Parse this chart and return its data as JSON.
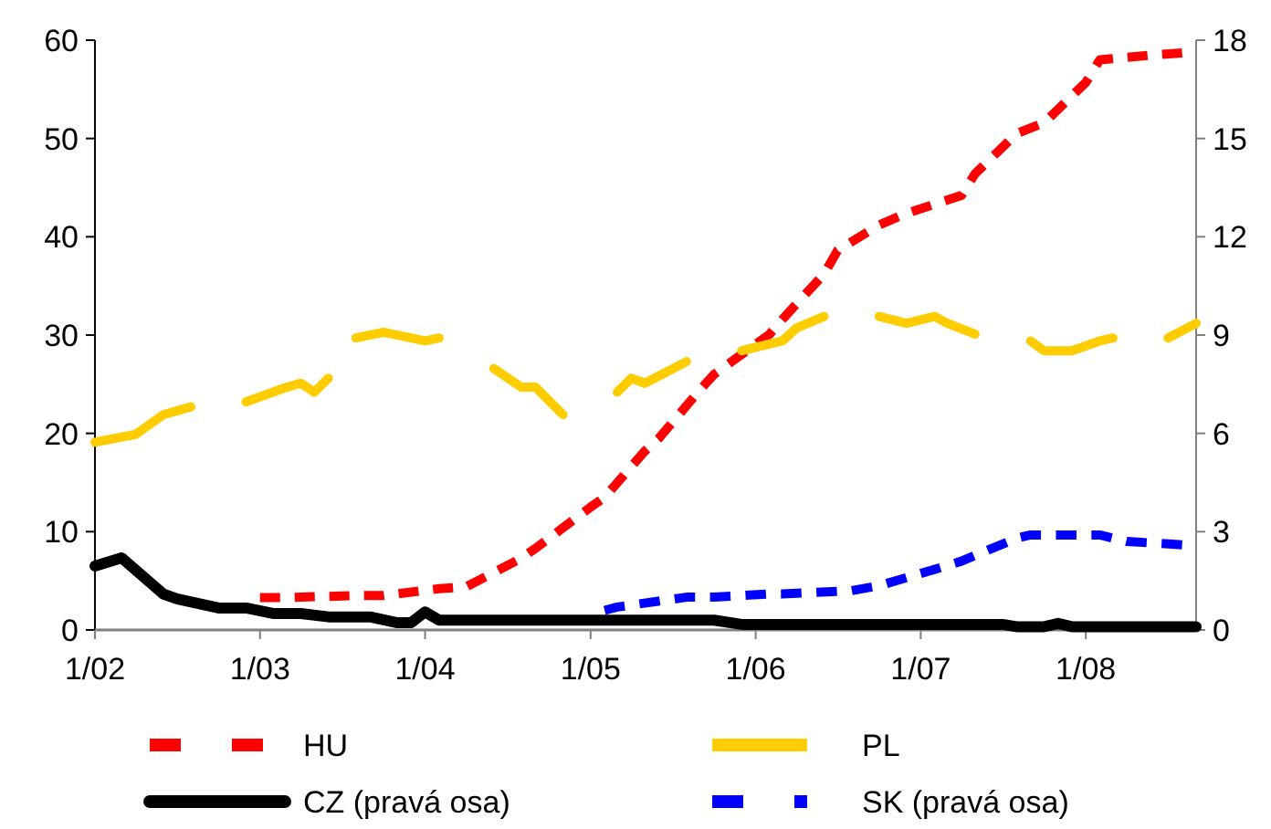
{
  "chart_data": {
    "type": "line",
    "xlim": [
      "2002-01",
      "2008-09"
    ],
    "xticks": [
      {
        "value": "2002-01",
        "label": "1/02"
      },
      {
        "value": "2003-01",
        "label": "1/03"
      },
      {
        "value": "2004-01",
        "label": "1/04"
      },
      {
        "value": "2005-01",
        "label": "1/05"
      },
      {
        "value": "2006-01",
        "label": "1/06"
      },
      {
        "value": "2007-01",
        "label": "1/07"
      },
      {
        "value": "2008-01",
        "label": "1/08"
      }
    ],
    "ylim": [
      0,
      60
    ],
    "yticks": [
      0,
      10,
      20,
      30,
      40,
      50,
      60
    ],
    "y2lim": [
      0,
      18
    ],
    "y2ticks": [
      0,
      3,
      6,
      9,
      12,
      15,
      18
    ],
    "grid": false,
    "legend": "bottom",
    "marker": "none",
    "series": [
      {
        "name": "HU",
        "color": "#ff0000",
        "line_style": "dashed",
        "x": [
          "2003-01",
          "2003-03",
          "2003-08",
          "2003-10",
          "2004-02",
          "2004-04",
          "2004-08",
          "2004-09",
          "2005-01",
          "2005-02",
          "2005-05",
          "2005-06",
          "2005-09",
          "2005-10",
          "2006-02",
          "2006-03",
          "2006-06",
          "2006-07",
          "2006-10",
          "2006-12",
          "2007-04",
          "2007-05",
          "2007-08",
          "2007-10",
          "2008-01",
          "2008-02",
          "2008-06",
          "2008-08"
        ],
        "values": [
          3.3,
          3.3,
          3.5,
          3.5,
          4.2,
          4.4,
          7.3,
          8.3,
          12.5,
          13.5,
          18.2,
          19.5,
          24.5,
          26,
          30.1,
          31.6,
          36.2,
          38.6,
          41.2,
          42.4,
          44.2,
          46.4,
          50.5,
          51.6,
          55.7,
          58,
          58.5,
          58.7
        ]
      },
      {
        "name": "PL",
        "color": "#ffcc00",
        "line_style": "solid",
        "x": [
          "2002-01",
          "2002-04",
          "2002-06",
          "2002-08",
          "2002-10",
          "2002-12",
          "2003-03",
          "2003-04",
          "2003-05",
          "2003-06",
          "2003-07",
          "2003-08",
          "2003-10",
          "2004-01",
          "2004-02",
          "2004-04",
          "2004-06",
          "2004-08",
          "2004-09",
          "2004-11",
          "2005-01",
          "2005-03",
          "2005-04",
          "2005-05",
          "2005-08",
          "2005-10",
          "2005-12",
          "2006-03",
          "2006-04",
          "2006-06",
          "2006-08",
          "2006-10",
          "2006-12",
          "2007-02",
          "2007-03",
          "2007-05",
          "2007-07",
          "2007-09",
          "2007-10",
          "2007-12",
          "2008-02",
          "2008-03",
          "2008-05",
          "2008-07",
          "2008-09"
        ],
        "values": [
          19.1,
          19.9,
          21.9,
          22.7,
          null,
          23.2,
          24.7,
          25.1,
          24.2,
          25.6,
          null,
          29.7,
          30.3,
          29.4,
          29.7,
          null,
          26.6,
          24.7,
          24.7,
          21.9,
          null,
          24.2,
          25.6,
          25.1,
          27.3,
          null,
          28.4,
          29.4,
          30.7,
          31.9,
          null,
          31.9,
          31.2,
          31.9,
          31.2,
          30.1,
          null,
          29.4,
          28.4,
          28.4,
          29.4,
          29.7,
          null,
          29.7,
          31.2
        ]
      },
      {
        "name": "CZ (pravá osa)",
        "color": "#000000",
        "line_style": "solid",
        "axis": "y2",
        "x": [
          "2002-01",
          "2002-03",
          "2002-06",
          "2002-07",
          "2002-10",
          "2002-12",
          "2003-02",
          "2003-04",
          "2003-06",
          "2003-09",
          "2003-11",
          "2003-12",
          "2004-01",
          "2004-02",
          "2005-10",
          "2005-12",
          "2007-07",
          "2007-08",
          "2007-10",
          "2007-11",
          "2007-12",
          "2008-09"
        ],
        "values": [
          1.95,
          2.2,
          1.1,
          0.95,
          0.67,
          0.67,
          0.5,
          0.5,
          0.4,
          0.4,
          0.22,
          0.22,
          0.55,
          0.3,
          0.3,
          0.17,
          0.17,
          0.1,
          0.1,
          0.2,
          0.1,
          0.1
        ]
      },
      {
        "name": "SK (pravá osa)",
        "color": "#0000ff",
        "line_style": "dashed",
        "axis": "y2",
        "x": [
          "2005-02",
          "2005-03",
          "2005-08",
          "2005-10",
          "2006-02",
          "2006-03",
          "2006-08",
          "2006-10",
          "2007-02",
          "2007-04",
          "2007-08",
          "2007-09",
          "2008-02",
          "2008-04",
          "2008-08"
        ],
        "values": [
          0.6,
          0.7,
          1.0,
          1.0,
          1.1,
          1.1,
          1.2,
          1.35,
          1.85,
          2.1,
          2.8,
          2.9,
          2.9,
          2.7,
          2.6
        ]
      }
    ]
  }
}
